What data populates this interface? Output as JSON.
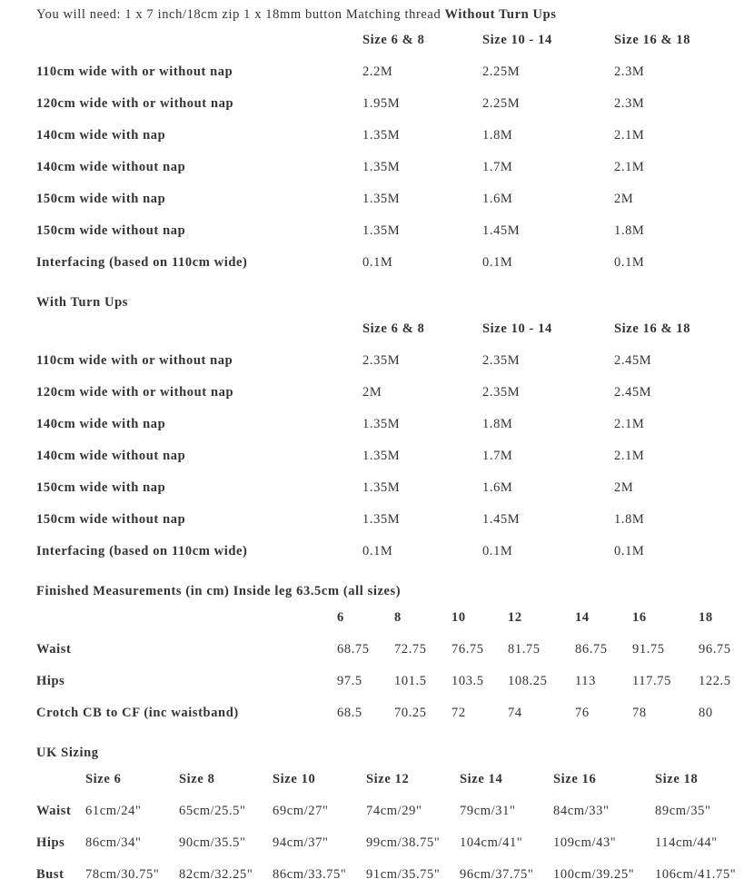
{
  "intro": {
    "text": "You will need: 1 x 7 inch/18cm zip 1 x 18mm button Matching thread ",
    "bold": "Without Turn Ups"
  },
  "without_turn_ups": {
    "headers": [
      "Size 6 & 8",
      "Size 10 - 14",
      "Size 16 & 18"
    ],
    "rows": [
      {
        "label": "110cm wide with or without nap",
        "values": [
          "2.2M",
          "2.25M",
          "2.3M"
        ]
      },
      {
        "label": "120cm wide with or without nap",
        "values": [
          "1.95M",
          "2.25M",
          "2.3M"
        ]
      },
      {
        "label": "140cm wide with nap",
        "values": [
          "1.35M",
          "1.8M",
          "2.1M"
        ]
      },
      {
        "label": "140cm wide without nap",
        "values": [
          "1.35M",
          "1.7M",
          "2.1M"
        ]
      },
      {
        "label": "150cm wide with nap",
        "values": [
          "1.35M",
          "1.6M",
          "2M"
        ]
      },
      {
        "label": "150cm wide without nap",
        "values": [
          "1.35M",
          "1.45M",
          "1.8M"
        ]
      },
      {
        "label": "Interfacing (based on 110cm wide)",
        "values": [
          "0.1M",
          "0.1M",
          "0.1M"
        ]
      }
    ]
  },
  "with_turn_ups": {
    "title": "With Turn Ups",
    "headers": [
      "Size 6 & 8",
      "Size 10 - 14",
      "Size 16 & 18"
    ],
    "rows": [
      {
        "label": "110cm wide with or without nap",
        "values": [
          "2.35M",
          "2.35M",
          "2.45M"
        ]
      },
      {
        "label": "120cm wide with or without nap",
        "values": [
          "2M",
          "2.35M",
          "2.45M"
        ]
      },
      {
        "label": "140cm wide with nap",
        "values": [
          "1.35M",
          "1.8M",
          "2.1M"
        ]
      },
      {
        "label": "140cm wide without nap",
        "values": [
          "1.35M",
          "1.7M",
          "2.1M"
        ]
      },
      {
        "label": "150cm wide with nap",
        "values": [
          "1.35M",
          "1.6M",
          "2M"
        ]
      },
      {
        "label": "150cm wide without nap",
        "values": [
          "1.35M",
          "1.45M",
          "1.8M"
        ]
      },
      {
        "label": "Interfacing (based on 110cm wide)",
        "values": [
          "0.1M",
          "0.1M",
          "0.1M"
        ]
      }
    ]
  },
  "finished": {
    "title": "Finished Measurements (in cm) Inside leg 63.5cm (all sizes)",
    "headers": [
      "6",
      "8",
      "10",
      "12",
      "14",
      "16",
      "18"
    ],
    "rows": [
      {
        "label": "Waist",
        "values": [
          "68.75",
          "72.75",
          "76.75",
          "81.75",
          "86.75",
          "91.75",
          "96.75"
        ]
      },
      {
        "label": "Hips",
        "values": [
          "97.5",
          "101.5",
          "103.5",
          "108.25",
          "113",
          "117.75",
          "122.5"
        ]
      },
      {
        "label": "Crotch CB to CF (inc waistband)",
        "values": [
          "68.5",
          "70.25",
          "72",
          "74",
          "76",
          "78",
          "80"
        ]
      }
    ]
  },
  "uk": {
    "title": "UK Sizing",
    "headers": [
      "Size 6",
      "Size 8",
      "Size 10",
      "Size 12",
      "Size 14",
      "Size 16",
      "Size 18"
    ],
    "rows": [
      {
        "label": "Waist",
        "values": [
          "61cm/24\"",
          "65cm/25.5\"",
          "69cm/27\"",
          "74cm/29\"",
          "79cm/31\"",
          "84cm/33\"",
          "89cm/35\""
        ]
      },
      {
        "label": "Hips",
        "values": [
          "86cm/34\"",
          "90cm/35.5\"",
          "94cm/37\"",
          "99cm/38.75\"",
          "104cm/41\"",
          "109cm/43\"",
          "114cm/44\""
        ]
      },
      {
        "label": "Bust",
        "values": [
          "78cm/30.75\"",
          "82cm/32.25\"",
          "86cm/33.75\"",
          "91cm/35.75\"",
          "96cm/37.75\"",
          "100cm/39.25\"",
          "106cm/41.75\""
        ]
      }
    ]
  }
}
